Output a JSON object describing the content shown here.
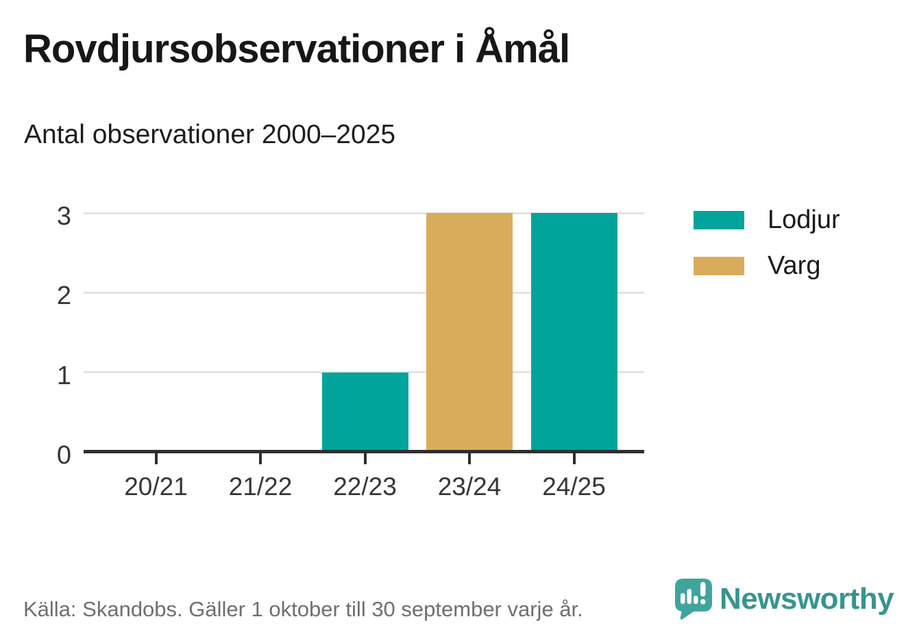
{
  "header": {
    "title": "Rovdjursobservationer i Åmål",
    "subtitle": "Antal observationer 2000–2025"
  },
  "chart_data": {
    "type": "bar",
    "title": "Rovdjursobservationer i Åmål",
    "subtitle": "Antal observationer 2000–2025",
    "categories": [
      "20/21",
      "21/22",
      "22/23",
      "23/24",
      "24/25"
    ],
    "series": [
      {
        "name": "Lodjur",
        "color": "#00A49B",
        "values": [
          0,
          0,
          1,
          0,
          3
        ]
      },
      {
        "name": "Varg",
        "color": "#D9AC5B",
        "values": [
          0,
          0,
          0,
          3,
          0
        ]
      }
    ],
    "xlabel": "",
    "ylabel": "",
    "ylim": [
      0,
      3
    ],
    "yticks": [
      0,
      1,
      2,
      3
    ],
    "grid": true,
    "legend_position": "right",
    "grid_color": "#E3E3E3",
    "axis_color": "#2F2F2F"
  },
  "footer": {
    "source": "Källa: Skandobs. Gäller 1 oktober till 30 september varje år.",
    "brand": "Newsworthy",
    "brand_color": "#38948F"
  }
}
